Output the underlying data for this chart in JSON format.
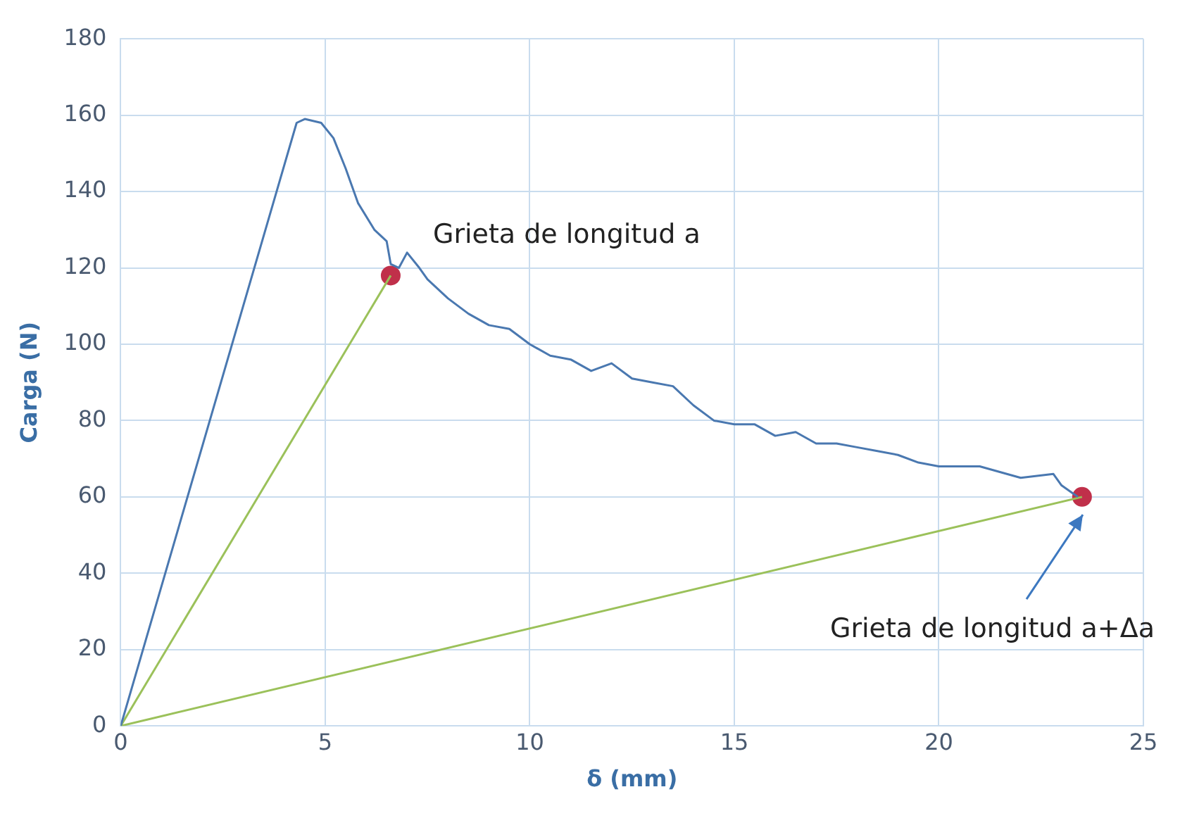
{
  "chart_data": {
    "type": "line",
    "xlabel": "δ (mm)",
    "ylabel": "Carga (N)",
    "xlim": [
      0,
      25
    ],
    "xticks": [
      0,
      5,
      10,
      15,
      20,
      25
    ],
    "ylim": [
      0,
      180
    ],
    "yticks": [
      0,
      20,
      40,
      60,
      80,
      100,
      120,
      140,
      160,
      180
    ],
    "grid": true,
    "legend": false,
    "marker": "none",
    "series": [
      {
        "color": "#4a78b0",
        "x": [
          0,
          4.3,
          4.5,
          4.9,
          5.2,
          5.5,
          5.8,
          6.2,
          6.5,
          6.6,
          6.8,
          7.0,
          7.3,
          7.5,
          8,
          8.5,
          9,
          9.5,
          10,
          10.5,
          11,
          11.5,
          12,
          12.5,
          13,
          13.5,
          14,
          14.5,
          15,
          15.5,
          16,
          16.5,
          17,
          17.5,
          18,
          18.5,
          19,
          19.5,
          20,
          21,
          22,
          22.8,
          23,
          23.4
        ],
        "values": [
          0,
          158,
          159,
          158,
          154,
          146,
          137,
          130,
          127,
          121,
          120,
          124,
          120,
          117,
          112,
          108,
          105,
          104,
          100,
          97,
          96,
          93,
          95,
          91,
          90,
          89,
          84,
          80,
          79,
          79,
          76,
          77,
          74,
          74,
          73,
          72,
          71,
          69,
          68,
          68,
          65,
          66,
          63,
          60
        ]
      },
      {
        "type": "line",
        "color": "#9bc15a",
        "x": [
          0,
          6.6
        ],
        "values": [
          0,
          118
        ]
      },
      {
        "type": "line",
        "color": "#9bc15a",
        "x": [
          0,
          23.5
        ],
        "values": [
          0,
          60
        ]
      },
      {
        "type": "scatter",
        "color": "#c0304a",
        "marker": "circle",
        "x": [
          6.6,
          23.5
        ],
        "values": [
          118,
          60
        ]
      }
    ],
    "annotations": [
      {
        "text": "Grieta de longitud a",
        "x": 6.6,
        "y": 118
      },
      "Grieta de longitud a+Δa"
    ]
  }
}
